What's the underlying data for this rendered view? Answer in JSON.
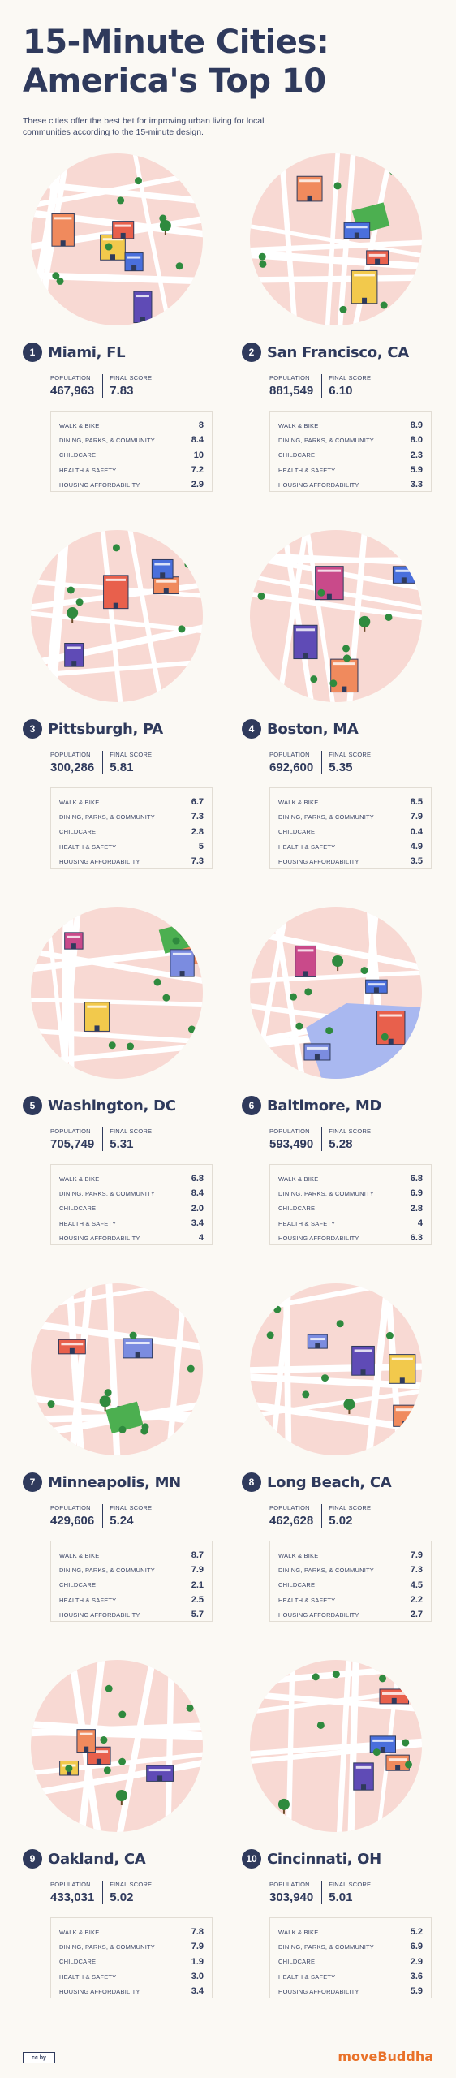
{
  "title": "15-Minute Cities: America's Top 10",
  "subtitle": "These cities offer the best bet for improving urban living for local communities according to the 15-minute design.",
  "labels": {
    "population": "POPULATION",
    "final_score": "FINAL SCORE",
    "walk_bike": "WALK & BIKE",
    "dining": "DINING, PARKS, & COMMUNITY",
    "childcare": "CHILDCARE",
    "health": "HEALTH & SAFETY",
    "housing": "HOUSING AFFORDABILITY"
  },
  "colors": {
    "background": "#fbf9f4",
    "navy": "#2f3a5c",
    "map_pink": "#f8d9d3",
    "street": "#ffffff",
    "tree_green": "#2f8a3e",
    "brand_orange": "#e9722a"
  },
  "cities": [
    {
      "rank": "1",
      "name": "Miami, FL",
      "population": "467,963",
      "final_score": "7.83",
      "scores": {
        "walk_bike": "8",
        "dining": "8.4",
        "childcare": "10",
        "health": "7.2",
        "housing": "2.9"
      },
      "icons": [
        "palm-tree-icon",
        "tower-building-icon",
        "food-truck-icon",
        "mailbox-icon",
        "hospital-icon",
        "shop-icon"
      ]
    },
    {
      "rank": "2",
      "name": "San Francisco, CA",
      "population": "881,549",
      "final_score": "6.10",
      "scores": {
        "walk_bike": "8.9",
        "dining": "8.0",
        "childcare": "2.3",
        "health": "5.9",
        "housing": "3.3"
      },
      "icons": [
        "transamerica-tower-icon",
        "city-hall-icon",
        "park-icon",
        "shop-icon",
        "school-icon"
      ]
    },
    {
      "rank": "3",
      "name": "Pittsburgh, PA",
      "population": "300,286",
      "final_score": "5.81",
      "scores": {
        "walk_bike": "6.7",
        "dining": "7.3",
        "childcare": "2.8",
        "health": "5",
        "housing": "7.3"
      },
      "icons": [
        "bridge-icon",
        "hospital-icon",
        "shop-icon",
        "cocktail-icon",
        "tree-icon"
      ]
    },
    {
      "rank": "4",
      "name": "Boston, MA",
      "population": "692,600",
      "final_score": "5.35",
      "scores": {
        "walk_bike": "8.5",
        "dining": "7.9",
        "childcare": "0.4",
        "health": "4.9",
        "housing": "3.5"
      },
      "icons": [
        "church-icon",
        "observatory-icon",
        "shop-icon",
        "cocktail-icon",
        "tree-icon"
      ]
    },
    {
      "rank": "5",
      "name": "Washington, DC",
      "population": "705,749",
      "final_score": "5.31",
      "scores": {
        "walk_bike": "6.8",
        "dining": "8.4",
        "childcare": "2.0",
        "health": "3.4",
        "housing": "4"
      },
      "icons": [
        "capitol-icon",
        "park-icon",
        "school-icon",
        "shop-icon",
        "burger-icon"
      ]
    },
    {
      "rank": "6",
      "name": "Baltimore, MD",
      "population": "593,490",
      "final_score": "5.28",
      "scores": {
        "walk_bike": "6.8",
        "dining": "6.9",
        "childcare": "2.8",
        "health": "4",
        "housing": "6.3"
      },
      "icons": [
        "harbor-icon",
        "aquarium-icon",
        "tower-building-icon",
        "palm-tree-icon",
        "shop-icon"
      ]
    },
    {
      "rank": "7",
      "name": "Minneapolis, MN",
      "population": "429,606",
      "final_score": "5.24",
      "scores": {
        "walk_bike": "8.7",
        "dining": "7.9",
        "childcare": "2.1",
        "health": "2.5",
        "housing": "5.7"
      },
      "icons": [
        "university-icon",
        "food-truck-icon",
        "park-icon",
        "shop-icon",
        "tree-icon"
      ]
    },
    {
      "rank": "8",
      "name": "Long Beach, CA",
      "population": "462,628",
      "final_score": "5.02",
      "scores": {
        "walk_bike": "7.9",
        "dining": "7.3",
        "childcare": "4.5",
        "health": "2.2",
        "housing": "2.7"
      },
      "icons": [
        "race-car-icon",
        "checkered-flag-icon",
        "palm-tree-icon",
        "tower-building-icon",
        "shop-icon"
      ]
    },
    {
      "rank": "9",
      "name": "Oakland, CA",
      "population": "433,031",
      "final_score": "5.02",
      "scores": {
        "walk_bike": "7.8",
        "dining": "7.9",
        "childcare": "1.9",
        "health": "3.0",
        "housing": "3.4"
      },
      "icons": [
        "clock-tower-icon",
        "shop-icon",
        "cocktail-icon",
        "school-icon",
        "tree-icon"
      ]
    },
    {
      "rank": "10",
      "name": "Cincinnati, OH",
      "population": "303,940",
      "final_score": "5.01",
      "scores": {
        "walk_bike": "5.2",
        "dining": "6.9",
        "childcare": "2.9",
        "health": "3.6",
        "housing": "5.9"
      },
      "icons": [
        "carew-tower-icon",
        "church-icon",
        "burger-icon",
        "shop-icon",
        "tree-icon"
      ]
    }
  ],
  "footer": {
    "license": "cc by",
    "brand": "moveBuddha"
  }
}
